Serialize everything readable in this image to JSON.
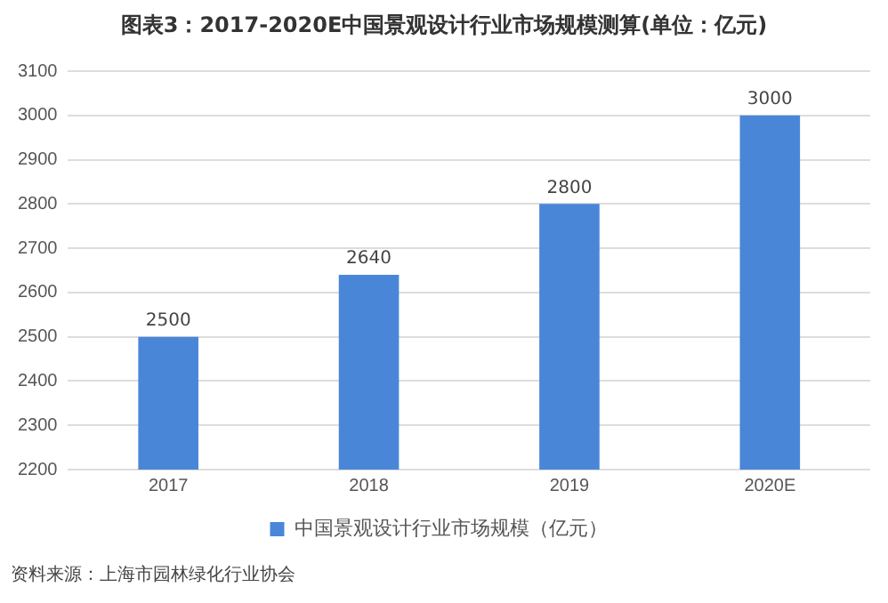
{
  "chart_data": {
    "type": "bar",
    "title": "图表3：2017-2020E中国景观设计行业市场规模测算(单位：亿元)",
    "categories": [
      "2017",
      "2018",
      "2019",
      "2020E"
    ],
    "series": [
      {
        "name": "中国景观设计行业市场规模（亿元）",
        "color": "#4a86d8",
        "values": [
          2500,
          2640,
          2800,
          3000
        ]
      }
    ],
    "ylim": [
      2200,
      3100
    ],
    "yticks": [
      2200,
      2300,
      2400,
      2500,
      2600,
      2700,
      2800,
      2900,
      3000,
      3100
    ],
    "grid": "y",
    "legend": "bottom",
    "data_labels": true,
    "annotations": [
      "资料来源：上海市园林绿化行业协会"
    ]
  }
}
